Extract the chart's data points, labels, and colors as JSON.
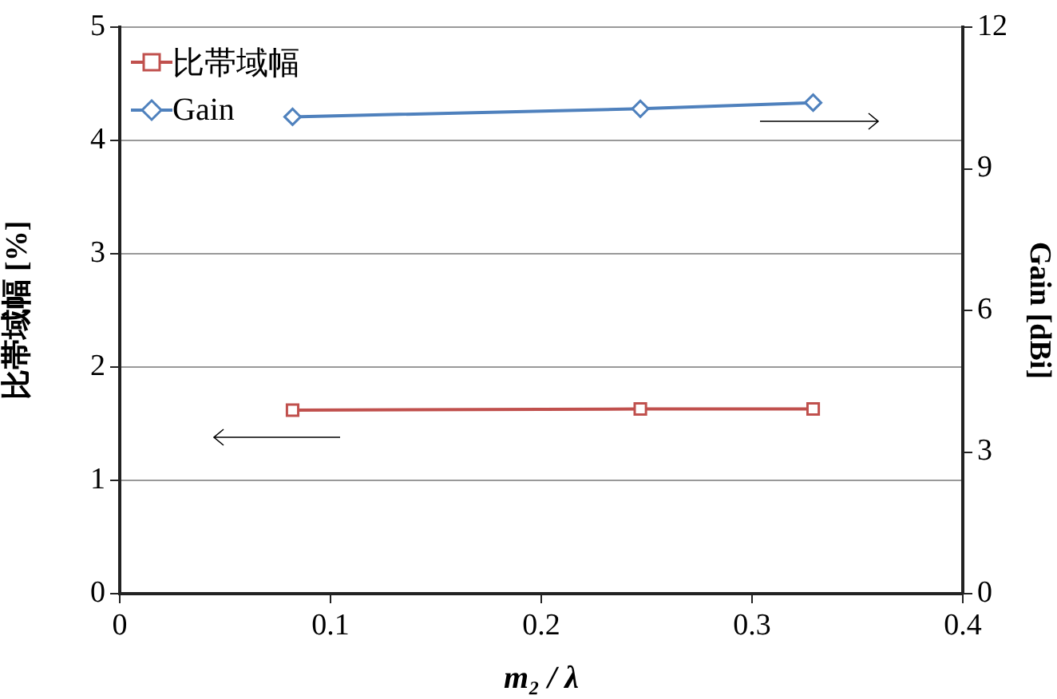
{
  "chart_data": {
    "type": "line",
    "xlabel": "m₂ / λ",
    "ylabel": "比帯域幅 [%]",
    "y2label": "Gain [dBi]",
    "x": [
      0.082,
      0.247,
      0.329
    ],
    "series": [
      {
        "name": "比帯域幅",
        "color": "#c0504d",
        "marker": "square",
        "values": [
          1.62,
          1.63,
          1.63
        ]
      },
      {
        "name": "Gain",
        "color": "#4f81bd",
        "marker": "diamond",
        "axis": "y2",
        "values": [
          10.1,
          10.27,
          10.4
        ]
      }
    ],
    "xlim": [
      0,
      0.4
    ],
    "xticks": [
      0,
      0.1,
      0.2,
      0.3,
      0.4
    ],
    "ylim": [
      0,
      5
    ],
    "yticks": [
      0,
      1,
      2,
      3,
      4,
      5
    ],
    "y2lim": [
      0,
      12
    ],
    "y2ticks": [
      0,
      3,
      6,
      9,
      12
    ],
    "grid": "y",
    "legend": "top left",
    "line_style": "solid"
  }
}
